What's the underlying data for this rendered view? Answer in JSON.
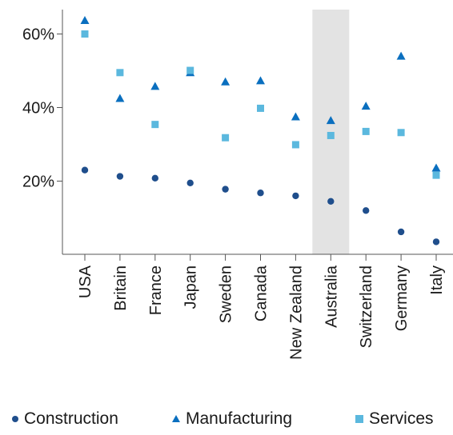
{
  "chart_data": {
    "type": "scatter",
    "categories": [
      "USA",
      "Britain",
      "France",
      "Japan",
      "Sweden",
      "Canada",
      "New Zealand",
      "Australia",
      "Switzerland",
      "Germany",
      "Italy"
    ],
    "highlighted_category": "Australia",
    "y_axis": {
      "ticks": [
        20,
        40,
        60
      ],
      "tick_labels": [
        "20%",
        "40%",
        "60%"
      ],
      "ylim": [
        0,
        66
      ],
      "grid": false
    },
    "series": [
      {
        "name": "Construction",
        "marker": "circle",
        "color": "#1f4e8c",
        "values": [
          23,
          21.3,
          20.8,
          19.5,
          17.8,
          16.8,
          16,
          14.5,
          12,
          6.2,
          3.5
        ]
      },
      {
        "name": "Manufacturing",
        "marker": "triangle",
        "color": "#0a6fbf",
        "values": [
          63.7,
          42.5,
          45.8,
          49.5,
          47,
          47.3,
          37.5,
          36.5,
          40.4,
          54,
          23.6
        ]
      },
      {
        "name": "Services",
        "marker": "square",
        "color": "#5bb8de",
        "values": [
          60,
          49.5,
          35.4,
          50.1,
          31.8,
          39.8,
          29.9,
          32.4,
          33.5,
          33.2,
          21.6
        ]
      }
    ],
    "legend_position": "bottom"
  }
}
